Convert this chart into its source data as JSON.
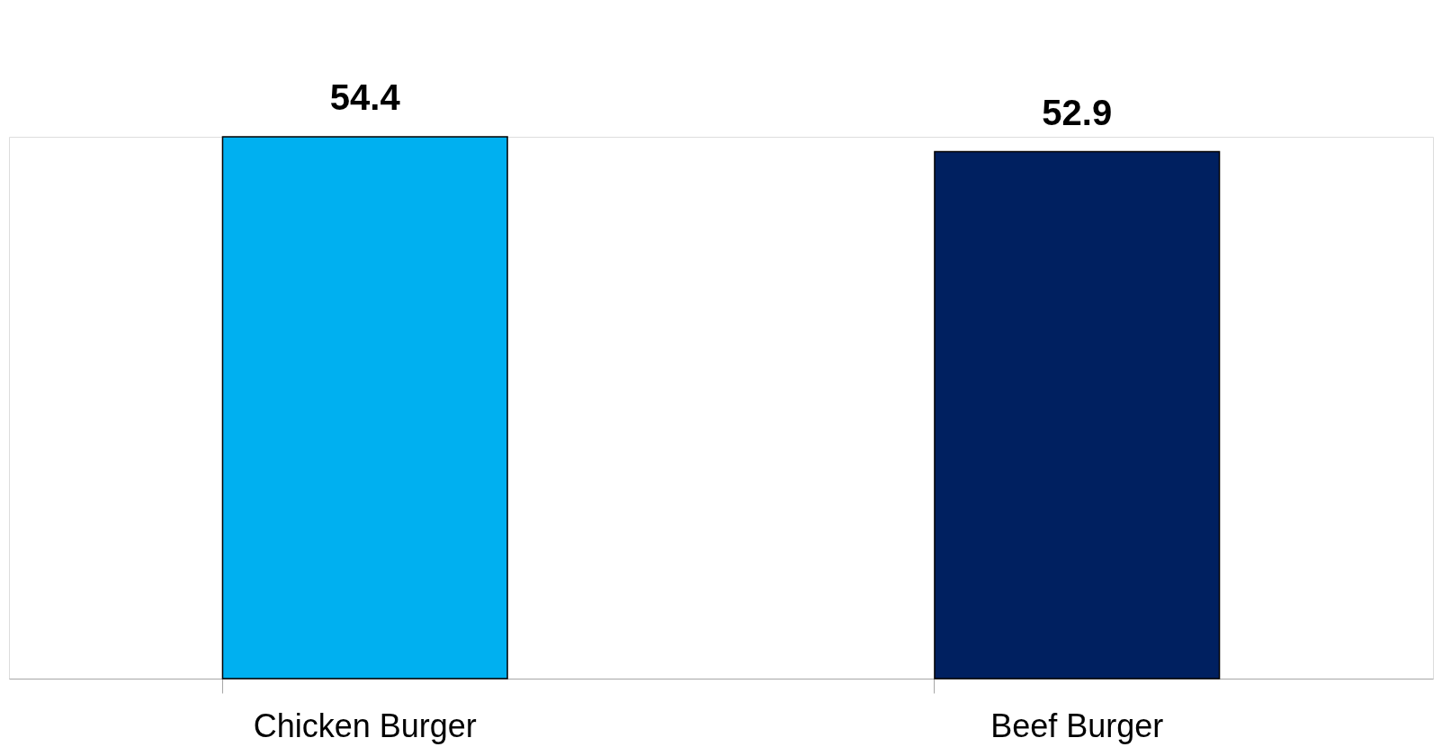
{
  "chart_data": {
    "type": "bar",
    "categories": [
      "Chicken Burger",
      "Beef Burger"
    ],
    "values": [
      54.4,
      52.9
    ],
    "colors": [
      "#00b0f0",
      "#002060"
    ],
    "data_labels": true
  }
}
